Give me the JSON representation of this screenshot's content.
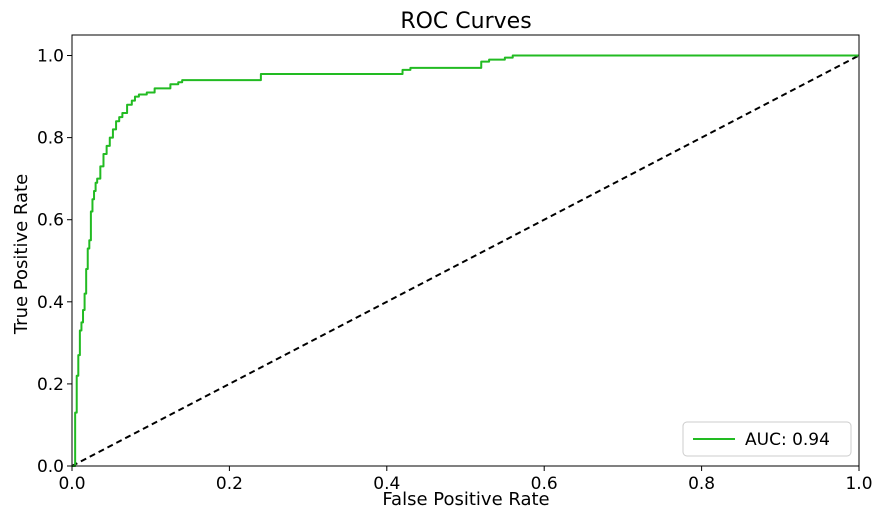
{
  "chart_data": {
    "type": "line",
    "title": "ROC Curves",
    "xlabel": "False Positive Rate",
    "ylabel": "True Positive Rate",
    "xlim": [
      0.0,
      1.0
    ],
    "ylim": [
      0.0,
      1.05
    ],
    "xticks": [
      0.0,
      0.2,
      0.4,
      0.6,
      0.8,
      1.0
    ],
    "xtick_labels": [
      "0.0",
      "0.2",
      "0.4",
      "0.6",
      "0.8",
      "1.0"
    ],
    "yticks": [
      0.0,
      0.2,
      0.4,
      0.6,
      0.8,
      1.0
    ],
    "ytick_labels": [
      "0.0",
      "0.2",
      "0.4",
      "0.6",
      "0.8",
      "1.0"
    ],
    "grid": false,
    "legend_position": "lower-right",
    "series": [
      {
        "name": "AUC: 0.94",
        "color": "#22bb22",
        "style": "solid",
        "x": [
          0.0,
          0.004,
          0.004,
          0.006,
          0.006,
          0.008,
          0.008,
          0.01,
          0.01,
          0.012,
          0.012,
          0.014,
          0.014,
          0.016,
          0.016,
          0.018,
          0.018,
          0.02,
          0.02,
          0.022,
          0.022,
          0.024,
          0.024,
          0.026,
          0.026,
          0.028,
          0.028,
          0.03,
          0.03,
          0.032,
          0.032,
          0.036,
          0.036,
          0.04,
          0.04,
          0.044,
          0.044,
          0.048,
          0.048,
          0.052,
          0.052,
          0.056,
          0.056,
          0.06,
          0.06,
          0.064,
          0.064,
          0.07,
          0.07,
          0.076,
          0.076,
          0.08,
          0.08,
          0.085,
          0.085,
          0.095,
          0.095,
          0.105,
          0.105,
          0.125,
          0.125,
          0.135,
          0.135,
          0.14,
          0.14,
          0.24,
          0.24,
          0.42,
          0.42,
          0.43,
          0.43,
          0.52,
          0.52,
          0.53,
          0.53,
          0.55,
          0.55,
          0.56,
          0.56,
          1.0
        ],
        "y": [
          0.0,
          0.0,
          0.13,
          0.13,
          0.22,
          0.22,
          0.27,
          0.27,
          0.33,
          0.33,
          0.35,
          0.35,
          0.38,
          0.38,
          0.42,
          0.42,
          0.48,
          0.48,
          0.53,
          0.53,
          0.55,
          0.55,
          0.62,
          0.62,
          0.65,
          0.65,
          0.67,
          0.67,
          0.69,
          0.69,
          0.7,
          0.7,
          0.73,
          0.73,
          0.76,
          0.76,
          0.78,
          0.78,
          0.8,
          0.8,
          0.82,
          0.82,
          0.84,
          0.84,
          0.85,
          0.85,
          0.86,
          0.86,
          0.88,
          0.88,
          0.89,
          0.89,
          0.9,
          0.9,
          0.905,
          0.905,
          0.91,
          0.91,
          0.92,
          0.92,
          0.93,
          0.93,
          0.935,
          0.935,
          0.94,
          0.94,
          0.955,
          0.955,
          0.965,
          0.965,
          0.97,
          0.97,
          0.985,
          0.985,
          0.99,
          0.99,
          0.995,
          0.995,
          1.0,
          1.0
        ]
      },
      {
        "name": "",
        "color": "#000000",
        "style": "dashed",
        "x": [
          0.0,
          1.0
        ],
        "y": [
          0.0,
          1.0
        ]
      }
    ]
  }
}
